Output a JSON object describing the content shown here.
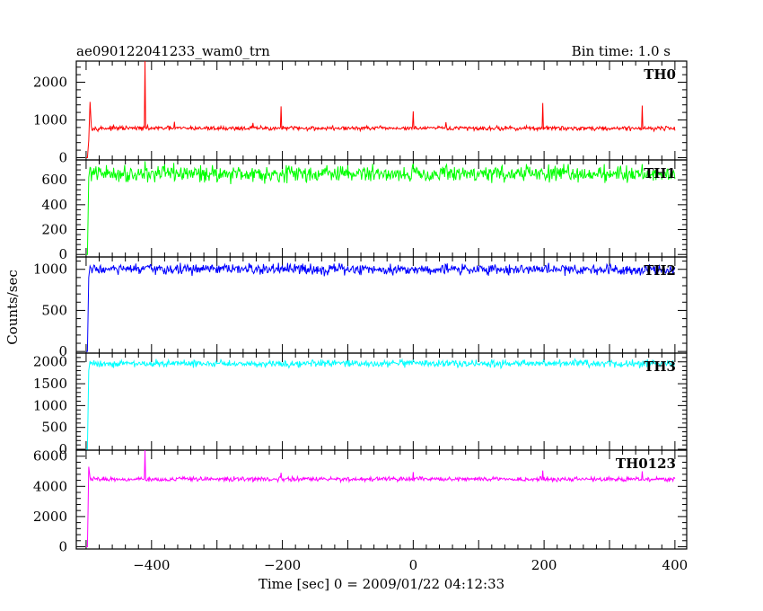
{
  "header": {
    "title": "ae090122041233_wam0_trn",
    "bin_time": "Bin time: 1.0 s"
  },
  "chart_data": {
    "type": "line",
    "title": "ae090122041233_wam0_trn",
    "subtitle": "Bin time: 1.0 s",
    "xlabel": "Time [sec] 0 = 2009/01/22 04:12:33",
    "ylabel": "Counts/sec",
    "xlim": [
      -515,
      418
    ],
    "x_ticks": [
      -400,
      -200,
      0,
      200,
      400
    ],
    "x_tick_labels": [
      "−400",
      "−200",
      "0",
      "200",
      "400"
    ],
    "x_range": [
      -498,
      400
    ],
    "grid": false,
    "panels": [
      {
        "name": "TH0",
        "color": "#ff0000",
        "ylim": [
          -60,
          2560
        ],
        "y_ticks": [
          0,
          1000,
          2000
        ],
        "y_tick_labels": [
          "0",
          "1000",
          "2000"
        ],
        "baseline": 780,
        "noise": 28,
        "onset": [
          [
            -500,
            0
          ],
          [
            -498,
            0
          ],
          [
            -496,
            450
          ],
          [
            -494,
            1480
          ],
          [
            -492,
            820
          ]
        ],
        "spikes": [
          [
            -410,
            2560
          ],
          [
            -365,
            950
          ],
          [
            -245,
            920
          ],
          [
            -202,
            1360
          ],
          [
            0,
            1230
          ],
          [
            50,
            940
          ],
          [
            198,
            1450
          ],
          [
            350,
            1380
          ]
        ]
      },
      {
        "name": "TH1",
        "color": "#00ff00",
        "ylim": [
          -20,
          760
        ],
        "y_ticks": [
          0,
          200,
          400,
          600
        ],
        "y_tick_labels": [
          "0",
          "200",
          "400",
          "600"
        ],
        "baseline": 650,
        "noise": 32,
        "onset": [
          [
            -500,
            0
          ],
          [
            -498,
            0
          ],
          [
            -497,
            300
          ],
          [
            -496,
            620
          ],
          [
            -494,
            700
          ]
        ],
        "spikes": [
          [
            -410,
            750
          ],
          [
            0,
            730
          ]
        ]
      },
      {
        "name": "TH2",
        "color": "#0000ff",
        "ylim": [
          -20,
          1150
        ],
        "y_ticks": [
          0,
          500,
          1000
        ],
        "y_tick_labels": [
          "0",
          "500",
          "1000"
        ],
        "baseline": 1000,
        "noise": 32,
        "onset": [
          [
            -500,
            0
          ],
          [
            -498,
            0
          ],
          [
            -497,
            450
          ],
          [
            -496,
            900
          ],
          [
            -494,
            1040
          ]
        ],
        "spikes": []
      },
      {
        "name": "TH3",
        "color": "#00ffff",
        "ylim": [
          -20,
          2200
        ],
        "y_ticks": [
          0,
          500,
          1000,
          1500,
          2000
        ],
        "y_tick_labels": [
          "0",
          "500",
          "1000",
          "1500",
          "2000"
        ],
        "baseline": 1960,
        "noise": 40,
        "onset": [
          [
            -500,
            0
          ],
          [
            -498,
            0
          ],
          [
            -497,
            900
          ],
          [
            -496,
            1800
          ],
          [
            -494,
            2020
          ]
        ],
        "spikes": []
      },
      {
        "name": "TH0123",
        "color": "#ff00ff",
        "ylim": [
          -150,
          6400
        ],
        "y_ticks": [
          0,
          2000,
          4000,
          6000
        ],
        "y_tick_labels": [
          "0",
          "2000",
          "4000",
          "6000"
        ],
        "baseline": 4480,
        "noise": 70,
        "onset": [
          [
            -500,
            0
          ],
          [
            -498,
            0
          ],
          [
            -497,
            2500
          ],
          [
            -496,
            5300
          ],
          [
            -494,
            4600
          ]
        ],
        "spikes": [
          [
            -410,
            6400
          ],
          [
            -202,
            4900
          ],
          [
            0,
            4950
          ],
          [
            198,
            5050
          ],
          [
            350,
            5000
          ]
        ]
      }
    ]
  }
}
